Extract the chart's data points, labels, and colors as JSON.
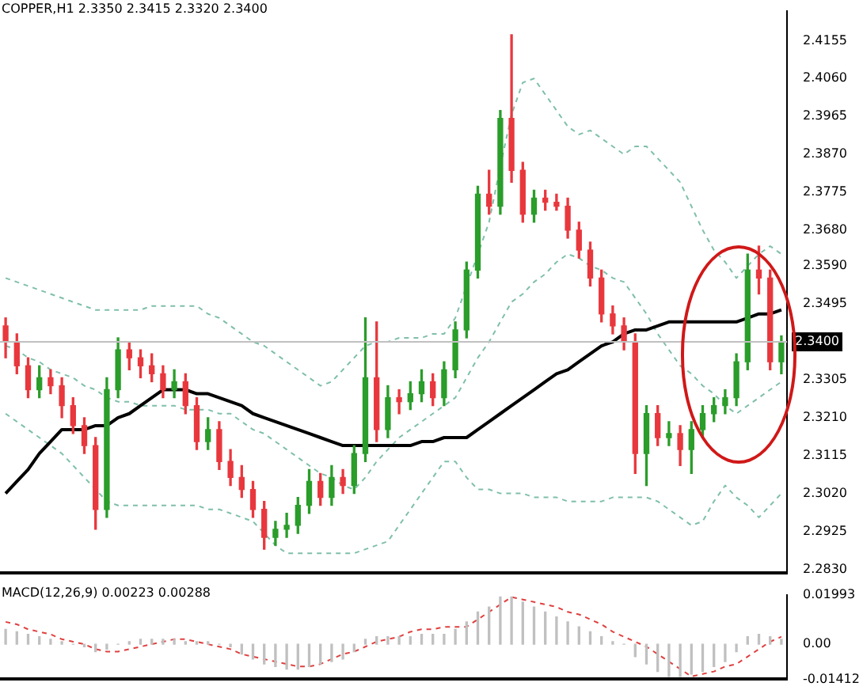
{
  "chart_data": [
    {
      "type": "candlestick",
      "title": "COPPER,H1  2.3350 2.3415 2.3320 2.3400",
      "categories": [
        null,
        null,
        null,
        null,
        null,
        null,
        null,
        null,
        null,
        null,
        null,
        null,
        null,
        null,
        null,
        null,
        null,
        null,
        null,
        null,
        null,
        null,
        null,
        null,
        null,
        null,
        null,
        null,
        null,
        null,
        null,
        null,
        null,
        null,
        null,
        null,
        null,
        null,
        null,
        null,
        null,
        null,
        null,
        null,
        null,
        null,
        null,
        null,
        null,
        null,
        null,
        null,
        null,
        null,
        null,
        null,
        null,
        null,
        null,
        null,
        null,
        null,
        null,
        null,
        null,
        null,
        null,
        null,
        null,
        null
      ],
      "ohlc": [
        [
          2.344,
          2.346,
          2.336,
          2.34
        ],
        [
          2.34,
          2.342,
          2.332,
          2.334
        ],
        [
          2.334,
          2.336,
          2.326,
          2.328
        ],
        [
          2.328,
          2.334,
          2.326,
          2.331
        ],
        [
          2.331,
          2.333,
          2.327,
          2.329
        ],
        [
          2.329,
          2.331,
          2.321,
          2.324
        ],
        [
          2.324,
          2.326,
          2.317,
          2.319
        ],
        [
          2.319,
          2.321,
          2.312,
          2.314
        ],
        [
          2.314,
          2.316,
          2.293,
          2.298
        ],
        [
          2.298,
          2.331,
          2.296,
          2.328
        ],
        [
          2.328,
          2.341,
          2.326,
          2.338
        ],
        [
          2.338,
          2.34,
          2.333,
          2.336
        ],
        [
          2.336,
          2.338,
          2.331,
          2.334
        ],
        [
          2.334,
          2.337,
          2.33,
          2.332
        ],
        [
          2.332,
          2.334,
          2.326,
          2.328
        ],
        [
          2.328,
          2.333,
          2.326,
          2.33
        ],
        [
          2.33,
          2.332,
          2.322,
          2.324
        ],
        [
          2.324,
          2.326,
          2.313,
          2.315
        ],
        [
          2.315,
          2.321,
          2.313,
          2.318
        ],
        [
          2.318,
          2.32,
          2.308,
          2.31
        ],
        [
          2.31,
          2.313,
          2.304,
          2.306
        ],
        [
          2.306,
          2.309,
          2.301,
          2.303
        ],
        [
          2.303,
          2.305,
          2.296,
          2.298
        ],
        [
          2.298,
          2.3,
          2.288,
          2.291
        ],
        [
          2.291,
          2.295,
          2.289,
          2.293
        ],
        [
          2.293,
          2.297,
          2.291,
          2.294
        ],
        [
          2.294,
          2.301,
          2.292,
          2.299
        ],
        [
          2.299,
          2.308,
          2.297,
          2.305
        ],
        [
          2.305,
          2.307,
          2.299,
          2.301
        ],
        [
          2.301,
          2.309,
          2.299,
          2.306
        ],
        [
          2.306,
          2.308,
          2.302,
          2.304
        ],
        [
          2.304,
          2.314,
          2.302,
          2.312
        ],
        [
          2.312,
          2.346,
          2.31,
          2.331
        ],
        [
          2.331,
          2.345,
          2.315,
          2.318
        ],
        [
          2.318,
          2.329,
          2.316,
          2.326
        ],
        [
          2.326,
          2.328,
          2.322,
          2.325
        ],
        [
          2.325,
          2.33,
          2.323,
          2.327
        ],
        [
          2.327,
          2.333,
          2.325,
          2.33
        ],
        [
          2.33,
          2.332,
          2.324,
          2.326
        ],
        [
          2.326,
          2.335,
          2.324,
          2.333
        ],
        [
          2.333,
          2.345,
          2.331,
          2.343
        ],
        [
          2.343,
          2.36,
          2.341,
          2.358
        ],
        [
          2.358,
          2.379,
          2.356,
          2.377
        ],
        [
          2.377,
          2.383,
          2.372,
          2.374
        ],
        [
          2.374,
          2.398,
          2.372,
          2.396
        ],
        [
          2.396,
          2.417,
          2.38,
          2.383
        ],
        [
          2.383,
          2.385,
          2.37,
          2.372
        ],
        [
          2.372,
          2.378,
          2.37,
          2.376
        ],
        [
          2.376,
          2.378,
          2.373,
          2.375
        ],
        [
          2.375,
          2.377,
          2.373,
          2.374
        ],
        [
          2.374,
          2.376,
          2.366,
          2.368
        ],
        [
          2.368,
          2.37,
          2.361,
          2.363
        ],
        [
          2.363,
          2.365,
          2.354,
          2.356
        ],
        [
          2.356,
          2.358,
          2.345,
          2.347
        ],
        [
          2.347,
          2.349,
          2.342,
          2.344
        ],
        [
          2.344,
          2.346,
          2.338,
          2.34
        ],
        [
          2.34,
          2.342,
          2.307,
          2.312
        ],
        [
          2.312,
          2.324,
          2.304,
          2.322
        ],
        [
          2.322,
          2.324,
          2.314,
          2.316
        ],
        [
          2.316,
          2.32,
          2.314,
          2.317
        ],
        [
          2.317,
          2.319,
          2.309,
          2.313
        ],
        [
          2.313,
          2.32,
          2.307,
          2.318
        ],
        [
          2.318,
          2.324,
          2.316,
          2.322
        ],
        [
          2.322,
          2.326,
          2.32,
          2.324
        ],
        [
          2.324,
          2.328,
          2.322,
          2.326
        ],
        [
          2.326,
          2.337,
          2.324,
          2.335
        ],
        [
          2.335,
          2.362,
          2.333,
          2.358
        ],
        [
          2.358,
          2.364,
          2.352,
          2.356
        ],
        [
          2.356,
          2.358,
          2.333,
          2.335
        ],
        [
          2.335,
          2.3415,
          2.332,
          2.34
        ]
      ],
      "colors": [
        "#e8383d",
        "#e8383d",
        "#e8383d",
        "#2a9d2a",
        "#e8383d",
        "#e8383d",
        "#e8383d",
        "#e8383d",
        "#e8383d",
        "#2a9d2a",
        "#2a9d2a",
        "#e8383d",
        "#e8383d",
        "#e8383d",
        "#e8383d",
        "#2a9d2a",
        "#e8383d",
        "#e8383d",
        "#2a9d2a",
        "#e8383d",
        "#e8383d",
        "#e8383d",
        "#e8383d",
        "#e8383d",
        "#2a9d2a",
        "#2a9d2a",
        "#2a9d2a",
        "#2a9d2a",
        "#e8383d",
        "#2a9d2a",
        "#e8383d",
        "#2a9d2a",
        "#2a9d2a",
        "#e8383d",
        "#2a9d2a",
        "#e8383d",
        "#2a9d2a",
        "#2a9d2a",
        "#e8383d",
        "#2a9d2a",
        "#2a9d2a",
        "#2a9d2a",
        "#2a9d2a",
        "#e8383d",
        "#2a9d2a",
        "#e8383d",
        "#e8383d",
        "#2a9d2a",
        "#e8383d",
        "#e8383d",
        "#e8383d",
        "#e8383d",
        "#e8383d",
        "#e8383d",
        "#e8383d",
        "#e8383d",
        "#e8383d",
        "#2a9d2a",
        "#e8383d",
        "#2a9d2a",
        "#e8383d",
        "#2a9d2a",
        "#2a9d2a",
        "#2a9d2a",
        "#2a9d2a",
        "#2a9d2a",
        "#2a9d2a",
        "#e8383d",
        "#e8383d",
        "#2a9d2a"
      ],
      "series": [
        {
          "type": "line",
          "color": "#000000",
          "line_style": "solid",
          "values": [
            2.302,
            2.305,
            2.308,
            2.312,
            2.315,
            2.318,
            2.318,
            2.318,
            2.319,
            2.319,
            2.321,
            2.322,
            2.324,
            2.326,
            2.328,
            2.328,
            2.328,
            2.327,
            2.327,
            2.326,
            2.325,
            2.324,
            2.322,
            2.321,
            2.32,
            2.319,
            2.318,
            2.317,
            2.316,
            2.315,
            2.314,
            2.314,
            2.314,
            2.314,
            2.314,
            2.314,
            2.314,
            2.315,
            2.315,
            2.316,
            2.316,
            2.316,
            2.318,
            2.32,
            2.322,
            2.324,
            2.326,
            2.328,
            2.33,
            2.332,
            2.333,
            2.335,
            2.337,
            2.339,
            2.34,
            2.342,
            2.343,
            2.343,
            2.344,
            2.345,
            2.345,
            2.345,
            2.345,
            2.345,
            2.345,
            2.345,
            2.346,
            2.347,
            2.347,
            2.348
          ]
        },
        {
          "type": "line",
          "color": "#7fbfaa",
          "line_style": "dashed",
          "values": [
            2.356,
            2.355,
            2.354,
            2.353,
            2.352,
            2.351,
            2.35,
            2.349,
            2.348,
            2.348,
            2.348,
            2.348,
            2.348,
            2.349,
            2.349,
            2.349,
            2.349,
            2.349,
            2.347,
            2.346,
            2.344,
            2.342,
            2.34,
            2.339,
            2.337,
            2.335,
            2.333,
            2.331,
            2.329,
            2.33,
            2.333,
            2.336,
            2.339,
            2.34,
            2.34,
            2.341,
            2.341,
            2.341,
            2.342,
            2.342,
            2.346,
            2.354,
            2.362,
            2.37,
            2.384,
            2.397,
            2.405,
            2.406,
            2.402,
            2.398,
            2.394,
            2.392,
            2.393,
            2.391,
            2.389,
            2.387,
            2.389,
            2.389,
            2.386,
            2.383,
            2.38,
            2.374,
            2.368,
            2.363,
            2.36,
            2.356,
            2.359,
            2.362,
            2.364,
            2.362
          ]
        },
        {
          "type": "line",
          "color": "#7fbfaa",
          "line_style": "dashed",
          "values": [
            2.339,
            2.338,
            2.336,
            2.335,
            2.333,
            2.332,
            2.331,
            2.329,
            2.328,
            2.326,
            2.325,
            2.325,
            2.324,
            2.324,
            2.324,
            2.324,
            2.323,
            2.323,
            2.323,
            2.322,
            2.322,
            2.32,
            2.318,
            2.317,
            2.315,
            2.313,
            2.311,
            2.309,
            2.307,
            2.306,
            2.304,
            2.303,
            2.306,
            2.31,
            2.313,
            2.316,
            2.318,
            2.32,
            2.322,
            2.324,
            2.326,
            2.331,
            2.336,
            2.34,
            2.345,
            2.35,
            2.352,
            2.355,
            2.357,
            2.36,
            2.362,
            2.361,
            2.359,
            2.358,
            2.356,
            2.355,
            2.351,
            2.347,
            2.342,
            2.338,
            2.334,
            2.332,
            2.329,
            2.327,
            2.324,
            2.322,
            2.324,
            2.326,
            2.328,
            2.33
          ]
        },
        {
          "type": "line",
          "color": "#7fbfaa",
          "line_style": "dashed",
          "values": [
            2.322,
            2.32,
            2.318,
            2.316,
            2.314,
            2.312,
            2.309,
            2.306,
            2.303,
            2.3,
            2.299,
            2.299,
            2.299,
            2.299,
            2.299,
            2.299,
            2.299,
            2.299,
            2.298,
            2.298,
            2.297,
            2.296,
            2.295,
            2.292,
            2.289,
            2.287,
            2.287,
            2.287,
            2.287,
            2.287,
            2.287,
            2.287,
            2.288,
            2.289,
            2.29,
            2.294,
            2.298,
            2.302,
            2.306,
            2.31,
            2.31,
            2.306,
            2.303,
            2.303,
            2.302,
            2.302,
            2.302,
            2.301,
            2.301,
            2.301,
            2.3,
            2.3,
            2.3,
            2.3,
            2.301,
            2.301,
            2.301,
            2.301,
            2.3,
            2.298,
            2.296,
            2.294,
            2.295,
            2.3,
            2.304,
            2.301,
            2.299,
            2.296,
            2.299,
            2.302
          ]
        }
      ],
      "ylim": [
        2.282,
        2.423
      ],
      "yticks": [
        {
          "value": 2.283,
          "label": "2.2830"
        },
        {
          "value": 2.2925,
          "label": "2.2925"
        },
        {
          "value": 2.302,
          "label": "2.3020"
        },
        {
          "value": 2.3115,
          "label": "2.3115"
        },
        {
          "value": 2.321,
          "label": "2.3210"
        },
        {
          "value": 2.3305,
          "label": "2.3305"
        },
        {
          "value": 2.3495,
          "label": "2.3495"
        },
        {
          "value": 2.359,
          "label": "2.3590"
        },
        {
          "value": 2.368,
          "label": "2.3680"
        },
        {
          "value": 2.3775,
          "label": "2.3775"
        },
        {
          "value": 2.387,
          "label": "2.3870"
        },
        {
          "value": 2.3965,
          "label": "2.3965"
        },
        {
          "value": 2.406,
          "label": "2.4060"
        },
        {
          "value": 2.4155,
          "label": "2.4155"
        }
      ],
      "ref_lines": [
        {
          "axis": "y",
          "value": 2.34,
          "label": "2.3400",
          "color": "#c0c0c0"
        }
      ],
      "legend": false,
      "tick_labels": "y"
    },
    {
      "type": "bar",
      "title": "MACD(12,26,9) 0.00223 0.00288",
      "color": "#c0c0c0",
      "categories": [
        null,
        null,
        null,
        null,
        null,
        null,
        null,
        null,
        null,
        null,
        null,
        null,
        null,
        null,
        null,
        null,
        null,
        null,
        null,
        null,
        null,
        null,
        null,
        null,
        null,
        null,
        null,
        null,
        null,
        null,
        null,
        null,
        null,
        null,
        null,
        null,
        null,
        null,
        null,
        null,
        null,
        null,
        null,
        null,
        null,
        null,
        null,
        null,
        null,
        null,
        null,
        null,
        null,
        null,
        null,
        null,
        null,
        null,
        null,
        null,
        null,
        null,
        null,
        null,
        null,
        null,
        null,
        null,
        null,
        null
      ],
      "values": [
        0.006,
        0.005,
        0.004,
        0.003,
        0.002,
        0.001,
        0,
        -0.001,
        -0.003,
        -0.002,
        0,
        0.001,
        0.002,
        0.002,
        0.002,
        0.002,
        0.001,
        0.001,
        0.001,
        0,
        -0.001,
        -0.004,
        -0.006,
        -0.008,
        -0.009,
        -0.01,
        -0.01,
        -0.009,
        -0.008,
        -0.007,
        -0.006,
        -0.003,
        0.002,
        0.003,
        0.003,
        0.003,
        0.003,
        0.004,
        0.004,
        0.004,
        0.006,
        0.009,
        0.013,
        0.015,
        0.019,
        0.019,
        0.017,
        0.015,
        0.013,
        0.011,
        0.009,
        0.007,
        0.005,
        0.003,
        0.001,
        0,
        -0.005,
        -0.008,
        -0.011,
        -0.013,
        -0.013,
        -0.012,
        -0.011,
        -0.009,
        -0.007,
        -0.003,
        0.003,
        0.004,
        0.003,
        0.002
      ],
      "series": [
        {
          "type": "line",
          "color": "#e04040",
          "line_style": "dashed",
          "values": [
            0.009,
            0.008,
            0.006,
            0.005,
            0.004,
            0.002,
            0.001,
            0,
            -0.002,
            -0.003,
            -0.003,
            -0.002,
            -0.001,
            0,
            0.001,
            0.002,
            0.002,
            0.001,
            0,
            -0.001,
            -0.002,
            -0.004,
            -0.005,
            -0.006,
            -0.007,
            -0.008,
            -0.009,
            -0.009,
            -0.008,
            -0.006,
            -0.004,
            -0.003,
            -0.001,
            0.001,
            0.002,
            0.003,
            0.005,
            0.006,
            0.006,
            0.007,
            0.007,
            0.007,
            0.01,
            0.013,
            0.016,
            0.019,
            0.018,
            0.017,
            0.016,
            0.015,
            0.013,
            0.012,
            0.01,
            0.008,
            0.005,
            0.003,
            0.001,
            -0.001,
            -0.004,
            -0.007,
            -0.01,
            -0.013,
            -0.012,
            -0.011,
            -0.009,
            -0.008,
            -0.005,
            -0.002,
            0.001,
            0.003
          ]
        }
      ],
      "ylim": [
        -0.01412,
        0.01993
      ],
      "yticks": [
        {
          "value": -0.01412,
          "label": "-0.01412"
        },
        {
          "value": 0,
          "label": "0.00"
        },
        {
          "value": 0.01993,
          "label": "0.01993"
        }
      ],
      "legend": false,
      "tick_labels": "y"
    }
  ]
}
